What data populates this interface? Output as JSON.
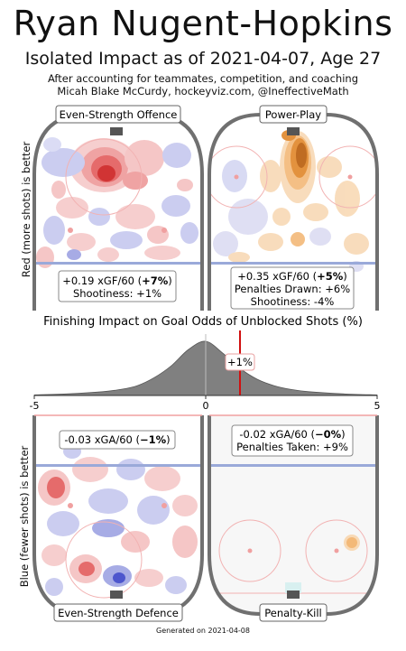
{
  "header": {
    "title": "Ryan Nugent-Hopkins",
    "subtitle": "Isolated Impact as of 2021-04-07, Age 27",
    "credit_line1": "After accounting for teammates, competition, and coaching",
    "credit_line2": "Micah Blake McCurdy, hockeyviz.com, @IneffectiveMath"
  },
  "y_labels": {
    "top": "Red (more shots) is better",
    "bottom": "Blue (fewer shots) is better"
  },
  "rinks": {
    "ev_offence": {
      "label": "Even-Strength Offence",
      "stat1_value": "+0.19 xGF/60 (",
      "stat1_pct": "+7%",
      "stat1_close": ")",
      "stat2": "Shootiness: +1%"
    },
    "power_play": {
      "label": "Power-Play",
      "stat1_value": "+0.35 xGF/60 (",
      "stat1_pct": "+5%",
      "stat1_close": ")",
      "stat2": "Penalties Drawn: +6%",
      "stat3": "Shootiness: -4%"
    },
    "ev_defence": {
      "label": "Even-Strength Defence",
      "stat1_value": "-0.03 xGA/60 (",
      "stat1_pct": "−1%",
      "stat1_close": ")"
    },
    "penalty_kill": {
      "label": "Penalty-Kill",
      "stat1_value": "-0.02 xGA/60 (",
      "stat1_pct": "−0%",
      "stat1_close": ")",
      "stat2": "Penalties Taken: +9%"
    }
  },
  "footer": "Generated on 2021-04-08",
  "chart_data": {
    "type": "area",
    "title": "Finishing Impact on Goal Odds of Unblocked Shots (%)",
    "xlim": [
      -5,
      5
    ],
    "ticks": [
      "-5",
      "0",
      "5"
    ],
    "tick_values": [
      -5,
      0,
      5
    ],
    "marker_value": 1,
    "marker_label": "+1%",
    "distribution": {
      "x": [
        -5,
        -4,
        -3,
        -2.5,
        -2,
        -1.5,
        -1,
        -0.5,
        0,
        0.5,
        1,
        1.5,
        2,
        2.5,
        3,
        4,
        5
      ],
      "density": [
        0.01,
        0.03,
        0.07,
        0.11,
        0.18,
        0.33,
        0.55,
        0.85,
        1.0,
        0.78,
        0.5,
        0.3,
        0.18,
        0.11,
        0.07,
        0.03,
        0.01
      ]
    },
    "colors": {
      "fill": "#808080",
      "marker": "#d01010",
      "zero_line": "#bbbbbb"
    }
  },
  "colors": {
    "board": "#707070",
    "blue_line": "#9aa9d9",
    "red_line": "#f0a0a0",
    "circle": "#f2b2b2",
    "net": "#555555",
    "ice_gray": "#f7f7f7"
  }
}
